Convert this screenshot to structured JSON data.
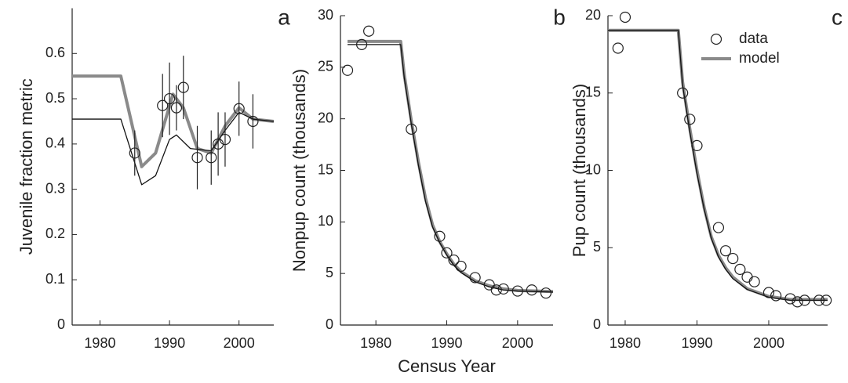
{
  "chart_data": [
    {
      "type": "line",
      "panel_label": "a",
      "y_label": "Juvenile fraction metric",
      "xlim": [
        1976,
        2005
      ],
      "xticks": [
        1980,
        1990,
        2000
      ],
      "ylim": [
        0,
        0.7
      ],
      "yticks": [
        0,
        0.1,
        0.2,
        0.3,
        0.4,
        0.5,
        0.6
      ],
      "series": [
        {
          "style": "thick-line",
          "color": "#8a8a8a",
          "x": [
            1976,
            1983,
            1986,
            1988,
            1990.5,
            1992,
            1994,
            1996,
            1998,
            2000,
            2002,
            2005
          ],
          "values": [
            0.55,
            0.55,
            0.35,
            0.38,
            0.51,
            0.48,
            0.39,
            0.38,
            0.44,
            0.48,
            0.455,
            0.45
          ]
        },
        {
          "style": "thin-line",
          "color": "#111111",
          "x": [
            1976,
            1983,
            1986,
            1988,
            1990,
            1991,
            1993,
            1996,
            1998,
            2000,
            2002,
            2005
          ],
          "values": [
            0.455,
            0.455,
            0.31,
            0.33,
            0.41,
            0.42,
            0.39,
            0.385,
            0.43,
            0.47,
            0.455,
            0.45
          ]
        },
        {
          "style": "circles",
          "color": "#222222",
          "x": [
            1985,
            1989,
            1990,
            1991,
            1992,
            1994,
            1996,
            1997,
            1998,
            2000,
            2002
          ],
          "values": [
            0.38,
            0.485,
            0.5,
            0.48,
            0.525,
            0.37,
            0.37,
            0.4,
            0.41,
            0.478,
            0.45
          ],
          "err": [
            0.05,
            0.07,
            0.08,
            0.05,
            0.07,
            0.07,
            0.06,
            0.07,
            0.06,
            0.06,
            0.06
          ]
        }
      ]
    },
    {
      "type": "line",
      "panel_label": "b",
      "y_label": "Nonpup count (thousands)",
      "x_label": "Census Year",
      "xlim": [
        1975,
        2005
      ],
      "xticks": [
        1980,
        1990,
        2000
      ],
      "ylim": [
        0,
        30
      ],
      "yticks": [
        0,
        5,
        10,
        15,
        20,
        25,
        30
      ],
      "series": [
        {
          "style": "thick-line",
          "color": "#8a8a8a",
          "x": [
            1976,
            1983.5,
            1984,
            1985,
            1986,
            1987,
            1988,
            1989,
            1990,
            1991,
            1992,
            1994,
            1996,
            1998,
            2000,
            2005
          ],
          "values": [
            27.5,
            27.5,
            24.3,
            19.8,
            15.8,
            12.3,
            9.7,
            8.1,
            6.9,
            5.9,
            5.2,
            4.3,
            3.8,
            3.5,
            3.35,
            3.25
          ]
        },
        {
          "style": "thin-line",
          "color": "#111111",
          "x": [
            1976,
            1983.5,
            1984,
            1985,
            1986,
            1987,
            1988,
            1989,
            1990,
            1991,
            1992,
            1994,
            1996,
            1998,
            2000,
            2005
          ],
          "values": [
            27.2,
            27.2,
            24,
            19.5,
            15.5,
            12,
            9.5,
            8,
            6.8,
            5.8,
            5.1,
            4.2,
            3.7,
            3.4,
            3.3,
            3.2
          ]
        },
        {
          "style": "circles",
          "color": "#222222",
          "x": [
            1976,
            1978,
            1979,
            1985,
            1989,
            1990,
            1991,
            1992,
            1994,
            1996,
            1997,
            1998,
            2000,
            2002,
            2004
          ],
          "values": [
            24.7,
            27.2,
            28.5,
            19,
            8.6,
            7,
            6.3,
            5.7,
            4.6,
            3.9,
            3.4,
            3.5,
            3.3,
            3.4,
            3.1
          ]
        }
      ]
    },
    {
      "type": "line",
      "panel_label": "c",
      "y_label": "Pup count (thousands)",
      "xlim": [
        1977.6,
        2008.2
      ],
      "xticks": [
        1980,
        1990,
        2000
      ],
      "ylim": [
        0,
        20
      ],
      "yticks": [
        0,
        5,
        10,
        15,
        20
      ],
      "legend": "upper right",
      "series": [
        {
          "name": "model",
          "style": "thick-line",
          "color": "#8a8a8a",
          "x": [
            1977.6,
            1987.4,
            1988,
            1989,
            1990,
            1991,
            1992,
            1993,
            1994,
            1995,
            1997,
            2000,
            2003,
            2008.2
          ],
          "values": [
            19.05,
            19.05,
            15.7,
            12.7,
            10,
            7.6,
            5.7,
            4.5,
            3.7,
            3.1,
            2.35,
            1.85,
            1.65,
            1.65
          ]
        },
        {
          "style": "thin-line",
          "color": "#111111",
          "x": [
            1977.6,
            1987.4,
            1988,
            1989,
            1990,
            1991,
            1992,
            1993,
            1994,
            1995,
            1997,
            2000,
            2003,
            2008.2
          ],
          "values": [
            19.05,
            19.05,
            15.5,
            12.5,
            9.8,
            7.5,
            5.6,
            4.4,
            3.6,
            3,
            2.3,
            1.8,
            1.6,
            1.6
          ]
        },
        {
          "name": "data",
          "style": "circles",
          "color": "#222222",
          "x": [
            1979,
            1980,
            1988,
            1989,
            1990,
            1993,
            1994,
            1995,
            1996,
            1997,
            1998,
            2000,
            2001,
            2003,
            2004,
            2005,
            2007,
            2008
          ],
          "values": [
            17.9,
            19.9,
            15,
            13.3,
            11.6,
            6.3,
            4.8,
            4.3,
            3.6,
            3.1,
            2.8,
            2.1,
            1.9,
            1.7,
            1.5,
            1.6,
            1.6,
            1.6
          ]
        }
      ]
    }
  ]
}
